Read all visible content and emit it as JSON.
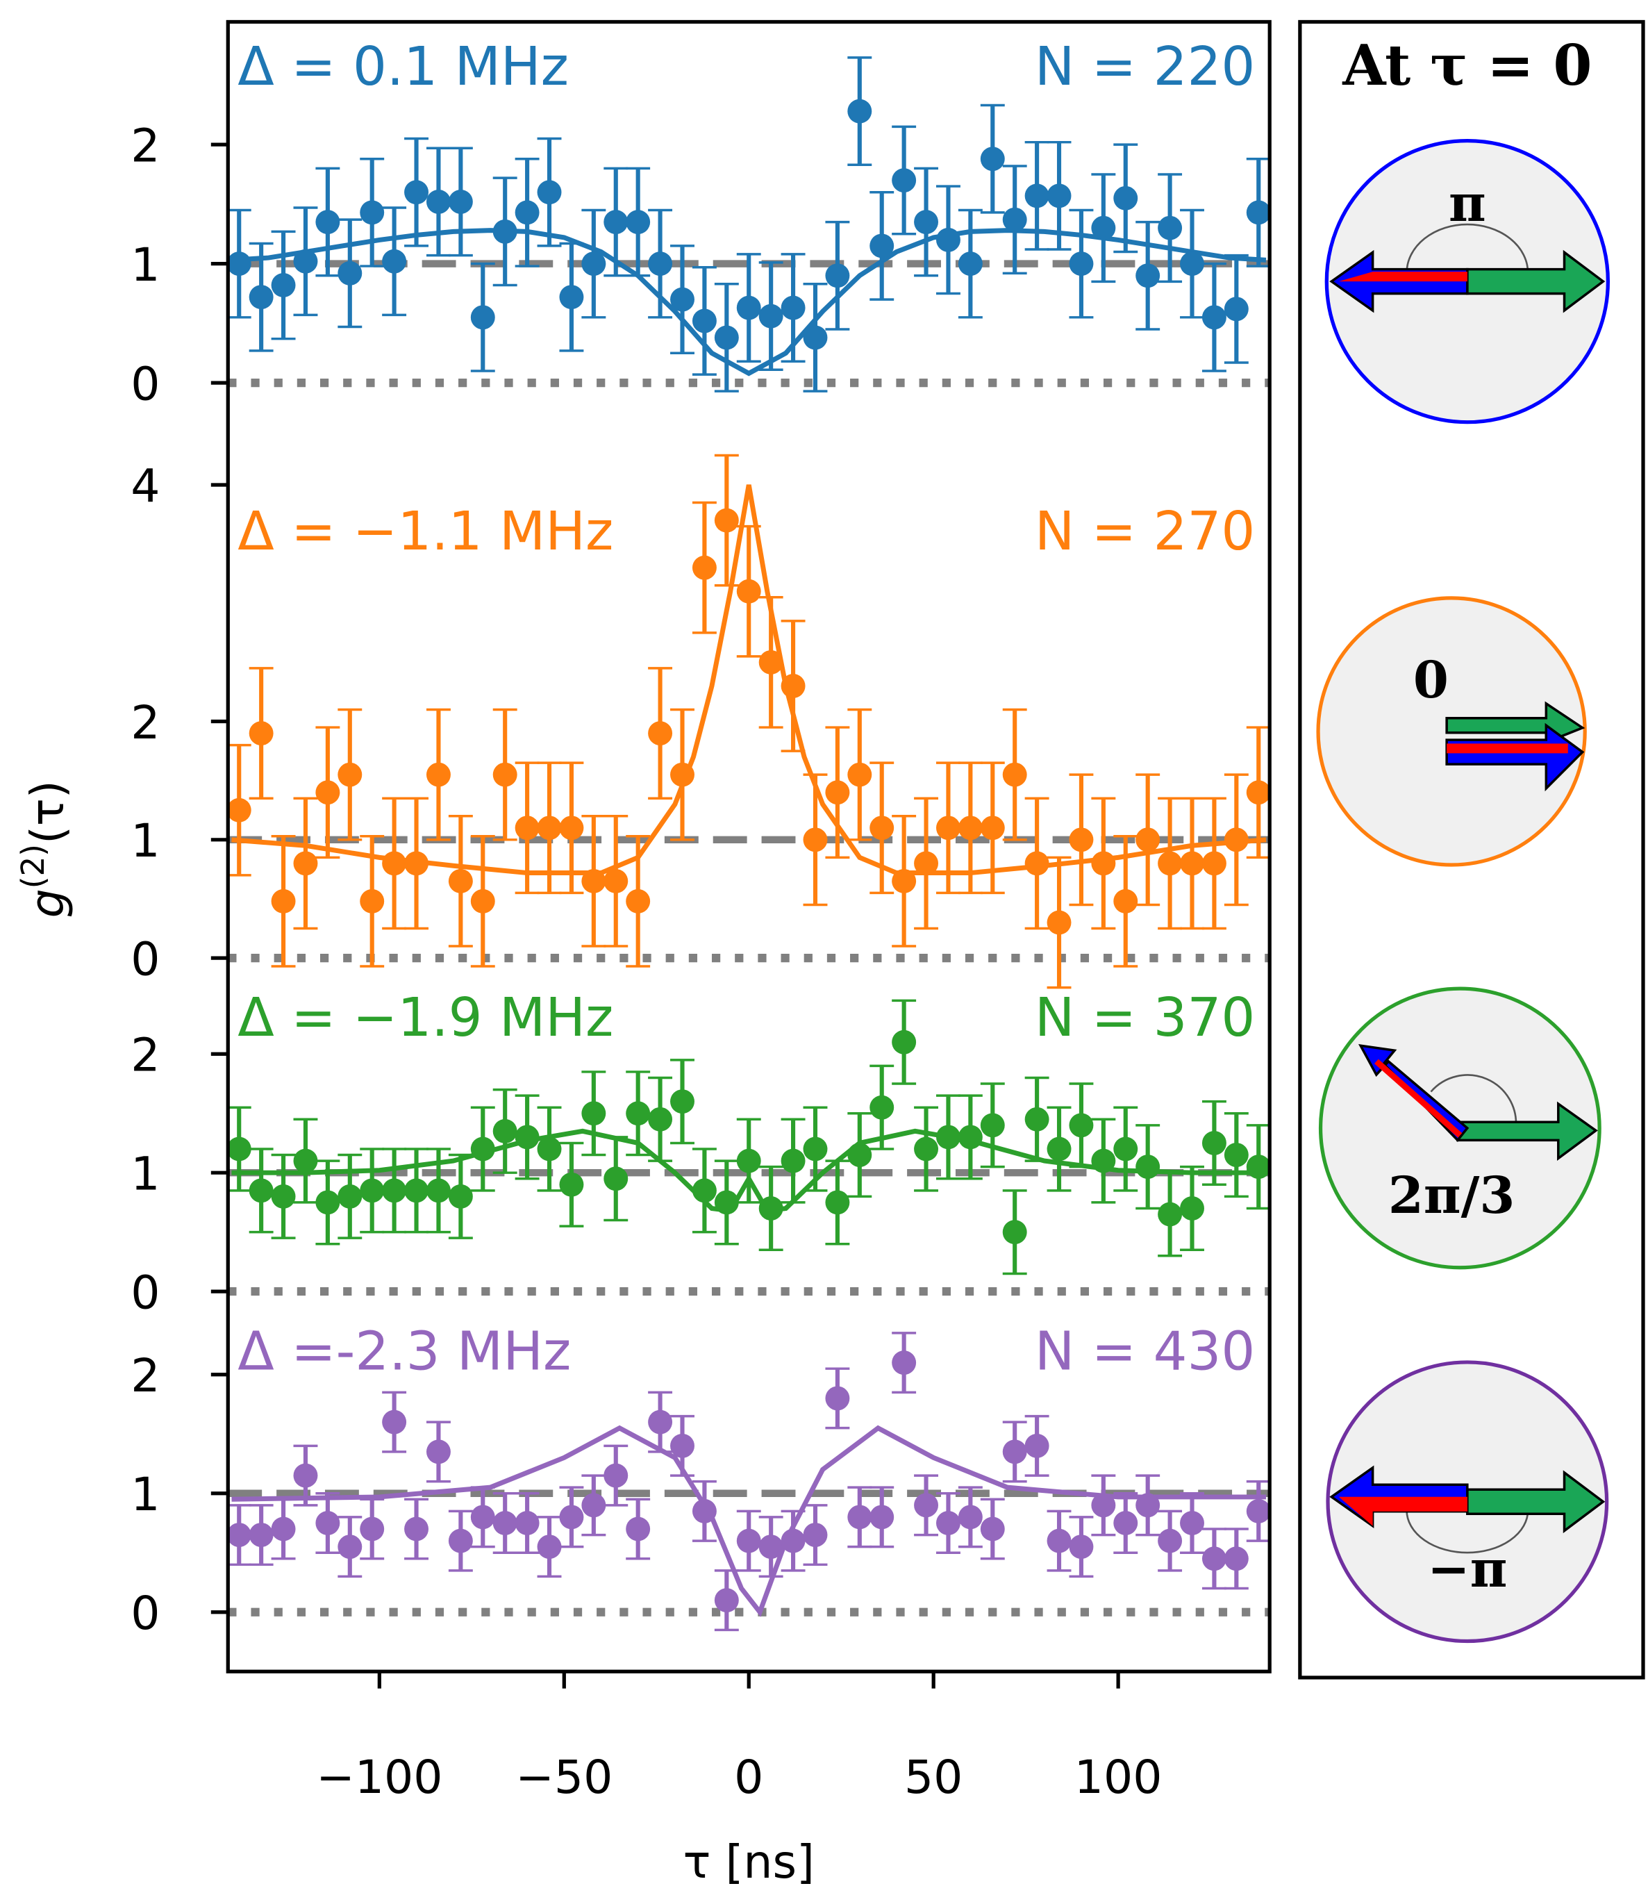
{
  "chart_data": [
    {
      "type": "errorbar",
      "color": "#1f77b4",
      "label_left": "Δ = 0.1 MHz",
      "label_right": "N = 220",
      "xlim": [
        -141,
        141
      ],
      "ylim": [
        -0.35,
        3.03
      ],
      "yticks": [
        0,
        1,
        2
      ],
      "ref_lines": [
        {
          "y": 1,
          "style": "dashed"
        },
        {
          "y": 0,
          "style": "dotted"
        }
      ],
      "x": [
        -138,
        -132,
        -126,
        -120,
        -114,
        -108,
        -102,
        -96,
        -90,
        -84,
        -78,
        -72,
        -66,
        -60,
        -54,
        -48,
        -42,
        -36,
        -30,
        -24,
        -18,
        -12,
        -6,
        0,
        6,
        12,
        18,
        24,
        30,
        36,
        42,
        48,
        54,
        60,
        66,
        72,
        78,
        84,
        90,
        96,
        102,
        108,
        114,
        120,
        126,
        132,
        138
      ],
      "values": [
        1.0,
        0.72,
        0.82,
        1.02,
        1.35,
        0.92,
        1.43,
        1.02,
        1.6,
        1.52,
        1.52,
        0.55,
        1.27,
        1.43,
        1.6,
        0.72,
        1.0,
        1.35,
        1.35,
        1.0,
        0.7,
        0.52,
        0.38,
        0.63,
        0.56,
        0.63,
        0.38,
        0.9,
        2.28,
        1.15,
        1.7,
        1.35,
        1.2,
        1.0,
        1.88,
        1.37,
        1.57,
        1.57,
        1.0,
        1.3,
        1.55,
        0.9,
        1.3,
        1.0,
        0.55,
        0.62,
        1.43
      ],
      "error": 0.45,
      "fit": {
        "x": [
          -140,
          -130,
          -120,
          -110,
          -100,
          -90,
          -80,
          -70,
          -60,
          -50,
          -40,
          -30,
          -20,
          -10,
          0,
          10,
          20,
          30,
          40,
          50,
          60,
          70,
          80,
          90,
          100,
          110,
          120,
          130,
          140
        ],
        "y": [
          1.03,
          1.05,
          1.1,
          1.15,
          1.2,
          1.24,
          1.27,
          1.28,
          1.27,
          1.22,
          1.1,
          0.9,
          0.6,
          0.25,
          0.08,
          0.25,
          0.6,
          0.9,
          1.1,
          1.22,
          1.27,
          1.28,
          1.27,
          1.24,
          1.2,
          1.15,
          1.1,
          1.05,
          1.03
        ]
      }
    },
    {
      "type": "errorbar",
      "color": "#ff7f0e",
      "label_left": "Δ = −1.1 MHz",
      "label_right": "N = 270",
      "xlim": [
        -141,
        141
      ],
      "ylim": [
        -0.31,
        4.51
      ],
      "yticks": [
        0,
        1,
        2,
        4
      ],
      "ref_lines": [
        {
          "y": 1,
          "style": "dashed"
        },
        {
          "y": 0,
          "style": "dotted"
        }
      ],
      "x": [
        -138,
        -132,
        -126,
        -120,
        -114,
        -108,
        -102,
        -96,
        -90,
        -84,
        -78,
        -72,
        -66,
        -60,
        -54,
        -48,
        -42,
        -36,
        -30,
        -24,
        -18,
        -12,
        -6,
        0,
        6,
        12,
        18,
        24,
        30,
        36,
        42,
        48,
        54,
        60,
        66,
        72,
        78,
        84,
        90,
        96,
        102,
        108,
        114,
        120,
        126,
        132,
        138
      ],
      "values": [
        1.25,
        1.9,
        0.48,
        0.8,
        1.4,
        1.55,
        0.48,
        0.8,
        0.8,
        1.55,
        0.65,
        0.48,
        1.55,
        1.1,
        1.1,
        1.1,
        0.65,
        0.65,
        0.48,
        1.9,
        1.55,
        3.3,
        3.7,
        3.1,
        2.5,
        2.3,
        1.0,
        1.4,
        1.55,
        1.1,
        0.65,
        0.8,
        1.1,
        1.1,
        1.1,
        1.55,
        0.8,
        0.3,
        1.0,
        0.8,
        0.48,
        1.0,
        0.8,
        0.8,
        0.8,
        1.0,
        1.4
      ],
      "error": 0.55,
      "fit": {
        "x": [
          -140,
          -120,
          -100,
          -80,
          -60,
          -40,
          -30,
          -20,
          -15,
          -10,
          -5,
          0,
          5,
          10,
          15,
          20,
          30,
          40,
          60,
          80,
          100,
          120,
          140
        ],
        "y": [
          1.0,
          0.95,
          0.85,
          0.78,
          0.72,
          0.72,
          0.85,
          1.3,
          1.7,
          2.3,
          3.1,
          4.0,
          3.1,
          2.3,
          1.7,
          1.3,
          0.85,
          0.72,
          0.72,
          0.78,
          0.85,
          0.95,
          1.0
        ]
      }
    },
    {
      "type": "errorbar",
      "color": "#2ca02c",
      "label_left": "Δ = −1.9 MHz",
      "label_right": "N = 370",
      "xlim": [
        -141,
        141
      ],
      "ylim": [
        -0.31,
        2.5
      ],
      "yticks": [
        0,
        1,
        2
      ],
      "ref_lines": [
        {
          "y": 1,
          "style": "dashed"
        },
        {
          "y": 0,
          "style": "dotted"
        }
      ],
      "x": [
        -138,
        -132,
        -126,
        -120,
        -114,
        -108,
        -102,
        -96,
        -90,
        -84,
        -78,
        -72,
        -66,
        -60,
        -54,
        -48,
        -42,
        -36,
        -30,
        -24,
        -18,
        -12,
        -6,
        0,
        6,
        12,
        18,
        24,
        30,
        36,
        42,
        48,
        54,
        60,
        66,
        72,
        78,
        84,
        90,
        96,
        102,
        108,
        114,
        120,
        126,
        132,
        138
      ],
      "values": [
        1.2,
        0.85,
        0.8,
        1.1,
        0.75,
        0.8,
        0.85,
        0.85,
        0.85,
        0.85,
        0.8,
        1.2,
        1.35,
        1.3,
        1.2,
        0.9,
        1.5,
        0.95,
        1.5,
        1.45,
        1.6,
        0.85,
        0.75,
        1.1,
        0.7,
        1.1,
        1.2,
        0.75,
        1.15,
        1.55,
        2.1,
        1.2,
        1.3,
        1.3,
        1.4,
        0.5,
        1.45,
        1.2,
        1.4,
        1.1,
        1.2,
        1.05,
        0.65,
        0.7,
        1.25,
        1.15,
        1.05
      ],
      "error": 0.35,
      "fit": {
        "x": [
          -140,
          -120,
          -100,
          -80,
          -60,
          -45,
          -30,
          -20,
          -10,
          -5,
          0,
          5,
          10,
          20,
          30,
          45,
          60,
          80,
          100,
          120,
          140
        ],
        "y": [
          1.0,
          1.0,
          1.02,
          1.1,
          1.27,
          1.35,
          1.25,
          1.0,
          0.7,
          0.68,
          0.95,
          0.68,
          0.7,
          1.0,
          1.25,
          1.35,
          1.27,
          1.1,
          1.02,
          1.0,
          1.0
        ]
      }
    },
    {
      "type": "errorbar",
      "color": "#9467bd",
      "label_left": "Δ =-2.3 MHz",
      "label_right": "N = 430",
      "xlim": [
        -141,
        141
      ],
      "ylim": [
        -0.5,
        2.39
      ],
      "yticks": [
        0,
        1,
        2
      ],
      "xticks": [
        {
          "value": -100,
          "label": "−100"
        },
        {
          "value": -50,
          "label": "−50"
        },
        0,
        50,
        100
      ],
      "xlabel": "τ [ns]",
      "ref_lines": [
        {
          "y": 1,
          "style": "dashed"
        },
        {
          "y": 0,
          "style": "dotted"
        }
      ],
      "x": [
        -138,
        -132,
        -126,
        -120,
        -114,
        -108,
        -102,
        -96,
        -90,
        -84,
        -78,
        -72,
        -66,
        -60,
        -54,
        -48,
        -42,
        -36,
        -30,
        -24,
        -18,
        -12,
        -6,
        0,
        6,
        12,
        18,
        24,
        30,
        36,
        42,
        48,
        54,
        60,
        66,
        72,
        78,
        84,
        90,
        96,
        102,
        108,
        114,
        120,
        126,
        132,
        138
      ],
      "values": [
        0.65,
        0.65,
        0.7,
        1.15,
        0.75,
        0.55,
        0.7,
        1.6,
        0.7,
        1.35,
        0.6,
        0.8,
        0.75,
        0.75,
        0.55,
        0.8,
        0.9,
        1.15,
        0.7,
        1.6,
        1.4,
        0.85,
        0.1,
        0.6,
        0.55,
        0.6,
        0.65,
        1.8,
        0.8,
        0.8,
        2.1,
        0.9,
        0.75,
        0.8,
        0.7,
        1.35,
        1.4,
        0.6,
        0.55,
        0.9,
        0.75,
        0.9,
        0.6,
        0.75,
        0.45,
        0.45,
        0.85
      ],
      "error": 0.25,
      "fit": {
        "x": [
          -140,
          -100,
          -70,
          -50,
          -35,
          -20,
          -10,
          -2,
          3,
          10,
          20,
          35,
          50,
          70,
          100,
          140
        ],
        "y": [
          0.95,
          0.97,
          1.05,
          1.3,
          1.55,
          1.3,
          0.8,
          0.2,
          0.0,
          0.6,
          1.2,
          1.55,
          1.3,
          1.05,
          0.97,
          0.97
        ]
      }
    }
  ],
  "ylabel": {
    "base": "g",
    "sup": "(2)",
    "arg": "(τ)"
  },
  "inset": {
    "title": "At τ = 0",
    "labels": [
      "π",
      "0",
      "2π/3",
      "−π"
    ]
  }
}
